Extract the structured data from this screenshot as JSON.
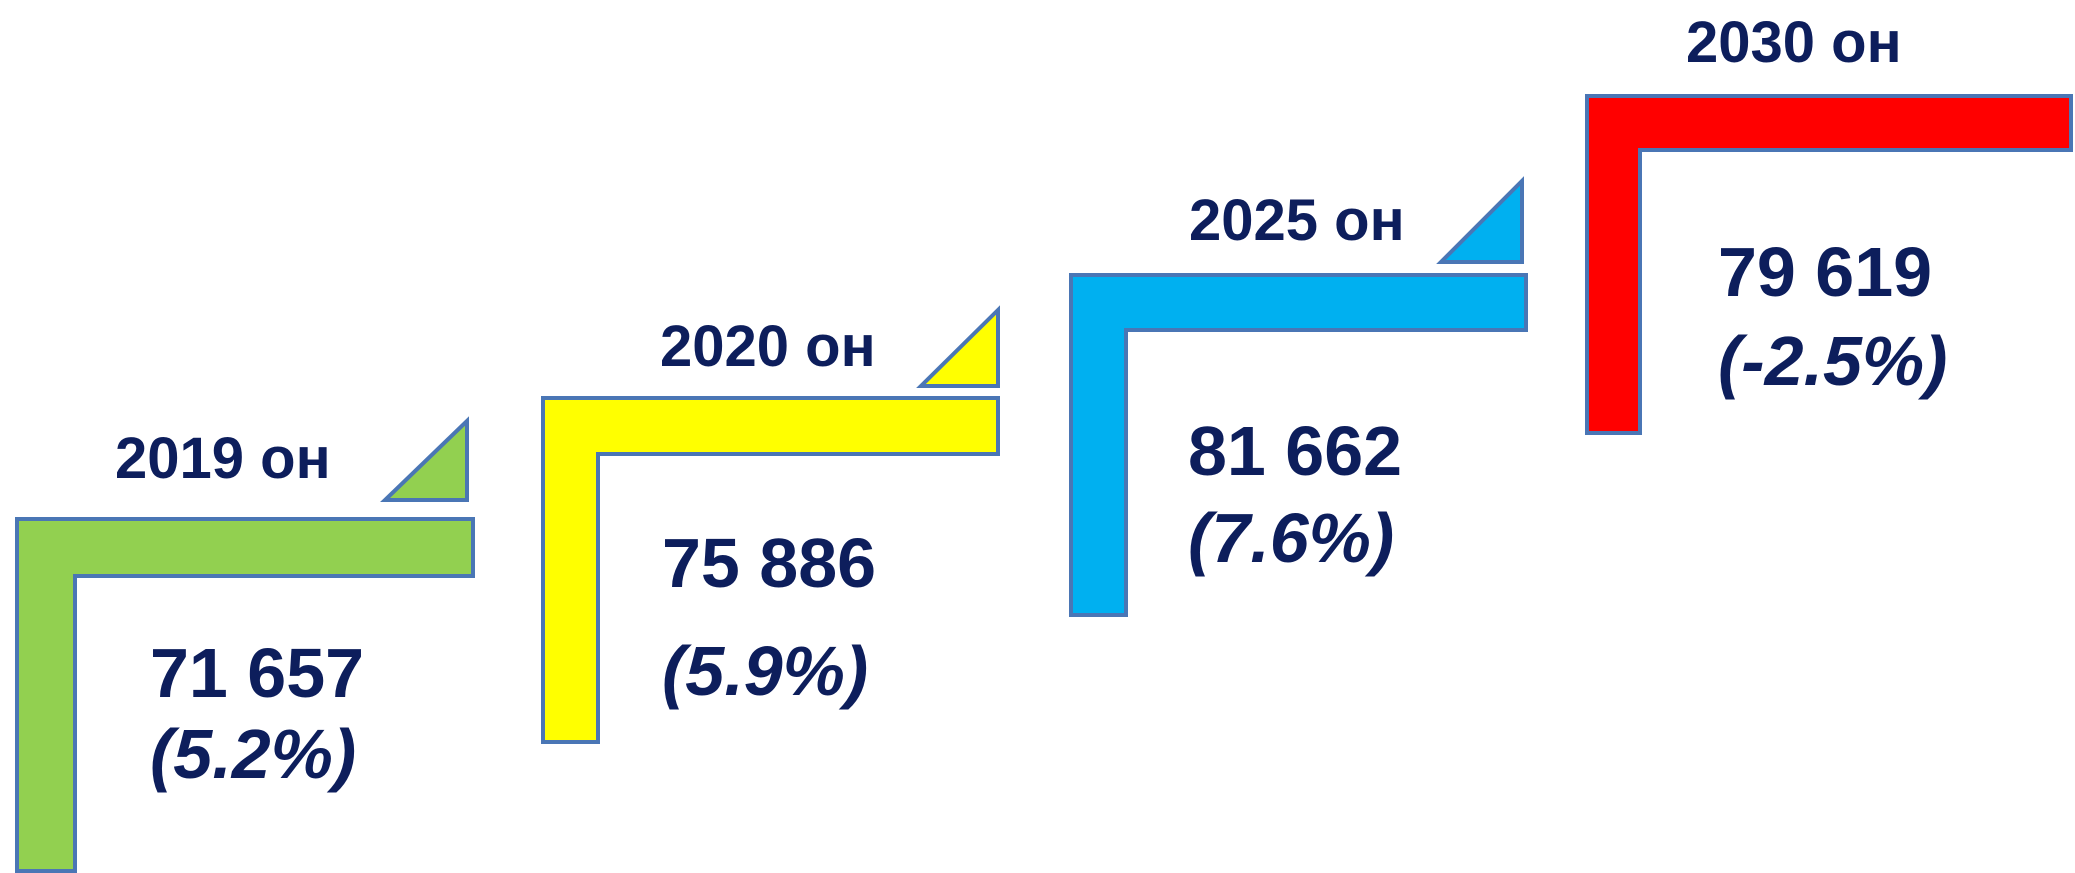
{
  "steps": [
    {
      "year_label": "2019 он",
      "value": "71 657",
      "change": "(5.2%)",
      "color": "#92d050"
    },
    {
      "year_label": "2020 он",
      "value": "75 886",
      "change": "(5.9%)",
      "color": "#ffff00"
    },
    {
      "year_label": "2025 он",
      "value": "81 662",
      "change": "(7.6%)",
      "color": "#00b0f0"
    },
    {
      "year_label": "2030 он",
      "value": "79 619",
      "change": "(-2.5%)",
      "color": "#ff0000"
    }
  ],
  "border_color": "#4a76b5",
  "text_color": "#0d1e5c"
}
